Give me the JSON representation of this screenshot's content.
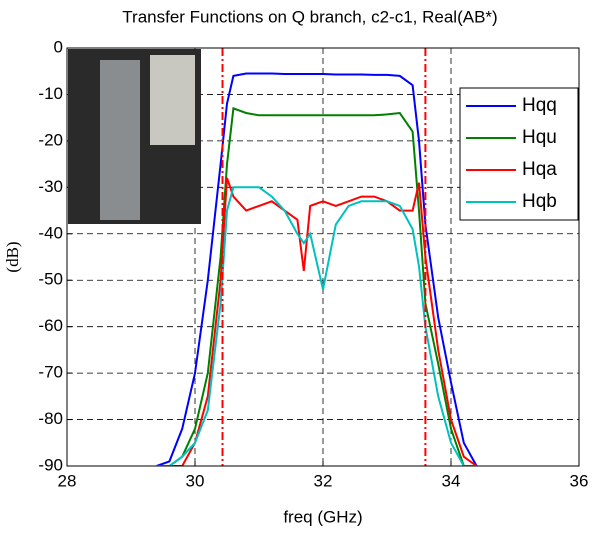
{
  "chart_data": {
    "type": "line",
    "title": "Transfer Functions on Q branch, c2-c1, Real(AB*)",
    "x_label": "freq (GHz)",
    "y_label": "(dB)",
    "x": [
      29.4,
      29.6,
      29.8,
      30.0,
      30.2,
      30.4,
      30.5,
      30.6,
      30.8,
      31.0,
      31.2,
      31.4,
      31.6,
      31.7,
      31.8,
      32.0,
      32.2,
      32.4,
      32.6,
      32.8,
      33.0,
      33.2,
      33.4,
      33.5,
      33.6,
      33.8,
      34.0,
      34.2,
      34.4
    ],
    "series": [
      {
        "name": "Hqq",
        "color": "#0000ff",
        "values": [
          -90,
          -89,
          -82,
          -70,
          -50,
          -25,
          -12,
          -6,
          -5.5,
          -5.5,
          -5.5,
          -5.6,
          -5.6,
          -5.6,
          -5.6,
          -5.6,
          -5.7,
          -5.7,
          -5.7,
          -5.8,
          -5.8,
          -6,
          -8,
          -20,
          -38,
          -58,
          -72,
          -85,
          -90
        ]
      },
      {
        "name": "Hqu",
        "color": "#008000",
        "values": [
          -90,
          -90,
          -88,
          -82,
          -70,
          -45,
          -25,
          -13,
          -14,
          -14.5,
          -14.5,
          -14.5,
          -14.5,
          -14.5,
          -14.5,
          -14.5,
          -14.5,
          -14.5,
          -14.5,
          -14.5,
          -14.3,
          -14,
          -18,
          -35,
          -55,
          -68,
          -82,
          -90,
          -90
        ]
      },
      {
        "name": "Hqa",
        "color": "#ff0000",
        "values": [
          -90,
          -90,
          -90,
          -85,
          -75,
          -50,
          -28,
          -32,
          -35,
          -34,
          -33,
          -35,
          -37,
          -48,
          -34,
          -33,
          -34,
          -33,
          -32,
          -32,
          -33,
          -35,
          -35,
          -29,
          -45,
          -65,
          -80,
          -88,
          -90
        ]
      },
      {
        "name": "Hqb",
        "color": "#00c0c0",
        "values": [
          -90,
          -90,
          -88,
          -85,
          -78,
          -55,
          -35,
          -30,
          -30,
          -30,
          -32,
          -35,
          -40,
          -42,
          -40,
          -52,
          -38,
          -34,
          -33,
          -33,
          -33,
          -34,
          -39,
          -47,
          -60,
          -75,
          -85,
          -90,
          -90
        ]
      }
    ],
    "vlines": [
      30.43,
      33.6
    ],
    "vline_color": "#ff0000",
    "xlim": [
      28,
      36
    ],
    "xticks": [
      28,
      30,
      32,
      34,
      36
    ],
    "ylim": [
      -90,
      0
    ],
    "yticks": [
      -90,
      -80,
      -70,
      -60,
      -50,
      -40,
      -30,
      -20,
      -10,
      0
    ],
    "grid": true,
    "legend": "upper right"
  }
}
